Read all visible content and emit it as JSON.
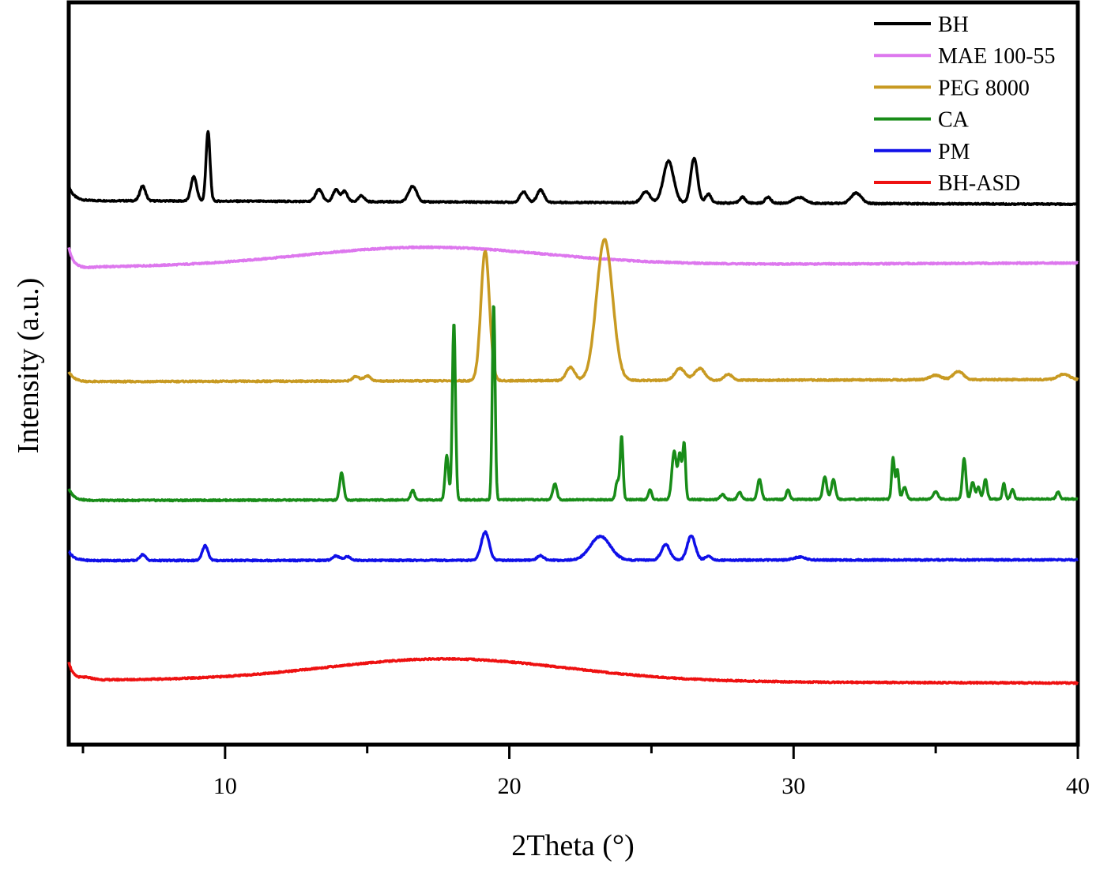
{
  "chart_data": {
    "type": "line",
    "title": "",
    "xlabel": "2Theta (°)",
    "ylabel": "Intensity (a.u.)",
    "xlim": [
      4.5,
      40
    ],
    "ylim": [
      0,
      100
    ],
    "x_ticks": [
      10,
      20,
      30,
      40
    ],
    "x_minor_ticks": [
      5,
      15,
      25,
      35
    ],
    "y_ticks_shown": false,
    "grid": false,
    "legend_position": "top-right",
    "series": [
      {
        "name": "BH",
        "color": "#000000",
        "baseline": 73.3,
        "end": 72.8,
        "start_shape": "spike",
        "start_value": 75.3,
        "peaks": [
          {
            "x": 7.1,
            "h": 2.0,
            "w": 0.1
          },
          {
            "x": 8.9,
            "h": 3.3,
            "w": 0.1
          },
          {
            "x": 9.4,
            "h": 9.4,
            "w": 0.07
          },
          {
            "x": 13.3,
            "h": 1.6,
            "w": 0.12
          },
          {
            "x": 13.9,
            "h": 1.6,
            "w": 0.1
          },
          {
            "x": 14.2,
            "h": 1.4,
            "w": 0.1
          },
          {
            "x": 14.8,
            "h": 0.8,
            "w": 0.1
          },
          {
            "x": 16.6,
            "h": 2.1,
            "w": 0.14
          },
          {
            "x": 20.5,
            "h": 1.4,
            "w": 0.12
          },
          {
            "x": 21.1,
            "h": 1.7,
            "w": 0.12
          },
          {
            "x": 24.8,
            "h": 1.5,
            "w": 0.15
          },
          {
            "x": 25.6,
            "h": 5.6,
            "w": 0.18
          },
          {
            "x": 26.5,
            "h": 6.0,
            "w": 0.12
          },
          {
            "x": 27.0,
            "h": 1.2,
            "w": 0.1
          },
          {
            "x": 28.2,
            "h": 0.8,
            "w": 0.1
          },
          {
            "x": 29.1,
            "h": 0.8,
            "w": 0.1
          },
          {
            "x": 30.2,
            "h": 0.8,
            "w": 0.2
          },
          {
            "x": 32.2,
            "h": 1.4,
            "w": 0.18
          }
        ]
      },
      {
        "name": "MAE 100-55",
        "color": "#dd77ee",
        "baseline": 64.3,
        "end": 64.9,
        "start_shape": "dip",
        "start_value": 67.0,
        "dip_value": 64.2,
        "hump": {
          "x": 17.0,
          "h": 2.5,
          "w": 6.0
        }
      },
      {
        "name": "PEG 8000",
        "color": "#c89a22",
        "baseline": 48.9,
        "end": 49.2,
        "start_shape": "spike",
        "start_value": 50.3,
        "peaks": [
          {
            "x": 14.6,
            "h": 0.6,
            "w": 0.12
          },
          {
            "x": 15.0,
            "h": 0.7,
            "w": 0.12
          },
          {
            "x": 19.15,
            "h": 17.5,
            "w": 0.15
          },
          {
            "x": 22.15,
            "h": 1.8,
            "w": 0.15
          },
          {
            "x": 23.35,
            "h": 19.0,
            "w": 0.28
          },
          {
            "x": 26.0,
            "h": 1.6,
            "w": 0.18
          },
          {
            "x": 26.7,
            "h": 1.6,
            "w": 0.18
          },
          {
            "x": 27.7,
            "h": 0.8,
            "w": 0.14
          },
          {
            "x": 35.0,
            "h": 0.6,
            "w": 0.2
          },
          {
            "x": 35.8,
            "h": 1.1,
            "w": 0.18
          },
          {
            "x": 39.5,
            "h": 0.7,
            "w": 0.2
          }
        ]
      },
      {
        "name": "CA",
        "color": "#188c18",
        "baseline": 32.9,
        "end": 33.1,
        "start_shape": "spike",
        "start_value": 34.5,
        "peaks": [
          {
            "x": 14.1,
            "h": 3.7,
            "w": 0.07
          },
          {
            "x": 16.6,
            "h": 1.3,
            "w": 0.07
          },
          {
            "x": 17.8,
            "h": 6.0,
            "w": 0.06
          },
          {
            "x": 18.05,
            "h": 24.0,
            "w": 0.055
          },
          {
            "x": 19.45,
            "h": 26.5,
            "w": 0.05
          },
          {
            "x": 21.6,
            "h": 2.2,
            "w": 0.07
          },
          {
            "x": 23.8,
            "h": 2.5,
            "w": 0.06
          },
          {
            "x": 23.95,
            "h": 8.5,
            "w": 0.05
          },
          {
            "x": 24.95,
            "h": 1.3,
            "w": 0.06
          },
          {
            "x": 25.8,
            "h": 6.5,
            "w": 0.08
          },
          {
            "x": 26.0,
            "h": 6.0,
            "w": 0.06
          },
          {
            "x": 26.15,
            "h": 7.5,
            "w": 0.05
          },
          {
            "x": 27.5,
            "h": 0.7,
            "w": 0.07
          },
          {
            "x": 28.1,
            "h": 1.0,
            "w": 0.07
          },
          {
            "x": 28.8,
            "h": 2.7,
            "w": 0.07
          },
          {
            "x": 29.8,
            "h": 1.3,
            "w": 0.06
          },
          {
            "x": 31.1,
            "h": 3.0,
            "w": 0.07
          },
          {
            "x": 31.4,
            "h": 2.7,
            "w": 0.07
          },
          {
            "x": 33.5,
            "h": 5.6,
            "w": 0.05
          },
          {
            "x": 33.65,
            "h": 4.0,
            "w": 0.05
          },
          {
            "x": 33.9,
            "h": 1.6,
            "w": 0.07
          },
          {
            "x": 35.0,
            "h": 1.0,
            "w": 0.08
          },
          {
            "x": 36.0,
            "h": 5.5,
            "w": 0.06
          },
          {
            "x": 36.3,
            "h": 2.3,
            "w": 0.06
          },
          {
            "x": 36.5,
            "h": 1.6,
            "w": 0.06
          },
          {
            "x": 36.75,
            "h": 2.7,
            "w": 0.06
          },
          {
            "x": 37.4,
            "h": 2.1,
            "w": 0.05
          },
          {
            "x": 37.7,
            "h": 1.3,
            "w": 0.06
          },
          {
            "x": 39.3,
            "h": 1.0,
            "w": 0.06
          }
        ]
      },
      {
        "name": "PM",
        "color": "#1010e8",
        "baseline": 24.8,
        "end": 24.9,
        "start_shape": "spike",
        "start_value": 26.1,
        "peaks": [
          {
            "x": 7.1,
            "h": 0.8,
            "w": 0.1
          },
          {
            "x": 9.3,
            "h": 2.0,
            "w": 0.1
          },
          {
            "x": 13.9,
            "h": 0.6,
            "w": 0.12
          },
          {
            "x": 14.3,
            "h": 0.5,
            "w": 0.12
          },
          {
            "x": 19.15,
            "h": 3.8,
            "w": 0.14
          },
          {
            "x": 21.1,
            "h": 0.6,
            "w": 0.12
          },
          {
            "x": 23.2,
            "h": 3.2,
            "w": 0.35
          },
          {
            "x": 25.5,
            "h": 2.1,
            "w": 0.15
          },
          {
            "x": 26.4,
            "h": 3.3,
            "w": 0.14
          },
          {
            "x": 27.0,
            "h": 0.5,
            "w": 0.12
          },
          {
            "x": 30.2,
            "h": 0.4,
            "w": 0.2
          }
        ]
      },
      {
        "name": "BH-ASD",
        "color": "#ee1111",
        "baseline": 8.7,
        "end": 8.3,
        "start_shape": "dip",
        "start_value": 11.2,
        "dip_value": 9.0,
        "hump": {
          "x": 17.8,
          "h": 3.0,
          "w": 6.0
        }
      }
    ]
  }
}
